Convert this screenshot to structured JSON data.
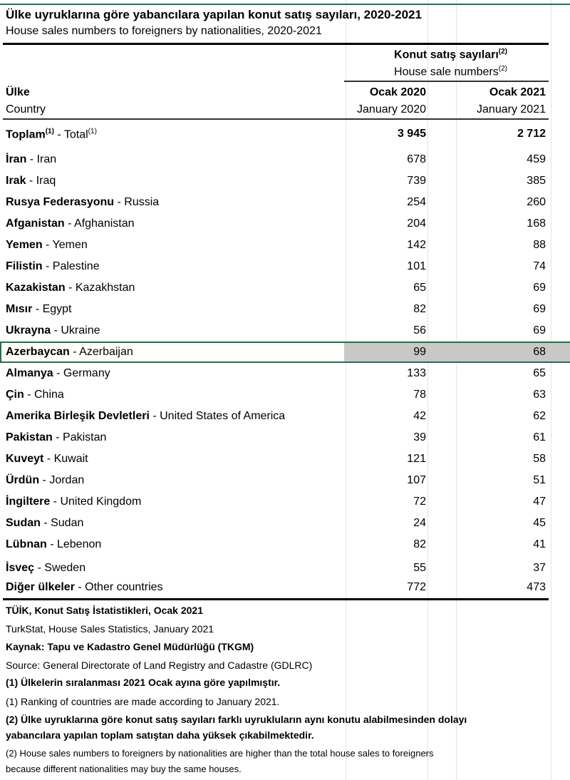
{
  "title": "Ülke uyruklarına göre yabancılara yapılan konut satış sayıları, 2020-2021",
  "subtitle": "House sales numbers to foreigners by nationalities, 2020-2021",
  "header": {
    "group_tr": "Konut satış sayıları",
    "group_en": "House sale numbers",
    "group_note": "(2)",
    "country_tr": "Ülke",
    "country_en": "Country",
    "col1_tr": "Ocak 2020",
    "col1_en": "January 2020",
    "col2_tr": "Ocak 2021",
    "col2_en": "January 2021"
  },
  "total": {
    "tr": "Toplam",
    "note": "(1)",
    "sep": " - ",
    "en": "Total",
    "v2020": "3 945",
    "v2021": "2 712"
  },
  "rows": [
    {
      "tr": "İran",
      "en": "Iran",
      "v2020": "678",
      "v2021": "459"
    },
    {
      "tr": "Irak",
      "en": "Iraq",
      "v2020": "739",
      "v2021": "385"
    },
    {
      "tr": "Rusya Federasyonu",
      "en": "Russia",
      "v2020": "254",
      "v2021": "260"
    },
    {
      "tr": "Afganistan",
      "en": "Afghanistan",
      "v2020": "204",
      "v2021": "168"
    },
    {
      "tr": "Yemen",
      "en": "Yemen",
      "v2020": "142",
      "v2021": "88"
    },
    {
      "tr": "Filistin",
      "en": "Palestine",
      "v2020": "101",
      "v2021": "74"
    },
    {
      "tr": "Kazakistan",
      "en": "Kazakhstan",
      "v2020": "65",
      "v2021": "69"
    },
    {
      "tr": "Mısır",
      "en": "Egypt",
      "v2020": "82",
      "v2021": "69"
    },
    {
      "tr": "Ukrayna",
      "en": "Ukraine",
      "v2020": "56",
      "v2021": "69"
    },
    {
      "tr": "Azerbaycan",
      "en": "Azerbaijan",
      "v2020": "99",
      "v2021": "68",
      "selected": true
    },
    {
      "tr": "Almanya",
      "en": "Germany",
      "v2020": "133",
      "v2021": "65"
    },
    {
      "tr": "Çin",
      "en": "China",
      "v2020": "78",
      "v2021": "63"
    },
    {
      "tr": "Amerika Birleşik Devletleri",
      "en": "United States of America",
      "v2020": "42",
      "v2021": "62"
    },
    {
      "tr": "Pakistan",
      "en": "Pakistan",
      "v2020": "39",
      "v2021": "61"
    },
    {
      "tr": "Kuveyt",
      "en": "Kuwait",
      "v2020": "121",
      "v2021": "58"
    },
    {
      "tr": "Ürdün",
      "en": "Jordan",
      "v2020": "107",
      "v2021": "51"
    },
    {
      "tr": "İngiltere",
      "en": "United Kingdom",
      "v2020": "72",
      "v2021": "47"
    },
    {
      "tr": "Sudan",
      "en": "Sudan",
      "v2020": "24",
      "v2021": "45"
    },
    {
      "tr": "Lübnan",
      "en": "Lebenon",
      "v2020": "82",
      "v2021": "41"
    },
    {
      "tr": "İsveç",
      "en": "Sweden",
      "v2020": "55",
      "v2021": "37"
    },
    {
      "tr": "Diğer ülkeler",
      "en": "Other countries",
      "v2020": "772",
      "v2021": "473"
    }
  ],
  "footer": {
    "source_tr": "TÜİK, Konut Satış İstatistikleri, Ocak 2021",
    "source_en": "TurkStat, House Sales Statistics, January 2021",
    "kaynak_tr": "Kaynak: Tapu ve Kadastro Genel Müdürlüğü (TKGM)",
    "kaynak_en": "Source: General Directorate of Land Registry and Cadastre (GDLRC)",
    "note1_tr": "(1) Ülkelerin sıralanması 2021 Ocak ayına göre yapılmıştır.",
    "note1_en": "(1) Ranking of countries are made according to January 2021.",
    "note2_tr_line1": "(2) Ülke uyruklarına göre konut satış sayıları farklı uyrukluların aynı konutu alabilmesinden dolayı",
    "note2_tr_line2": "yabancılara yapılan toplam satıştan daha yüksek çıkabilmektedir.",
    "note2_en_line1": "(2) House sales numbers to foreigners by nationalities are higher than the total house sales to foreigners",
    "note2_en_line2": "because different nationalities may buy the same houses."
  },
  "colors": {
    "selection": "#217346",
    "highlight": "#c8c8c8"
  }
}
